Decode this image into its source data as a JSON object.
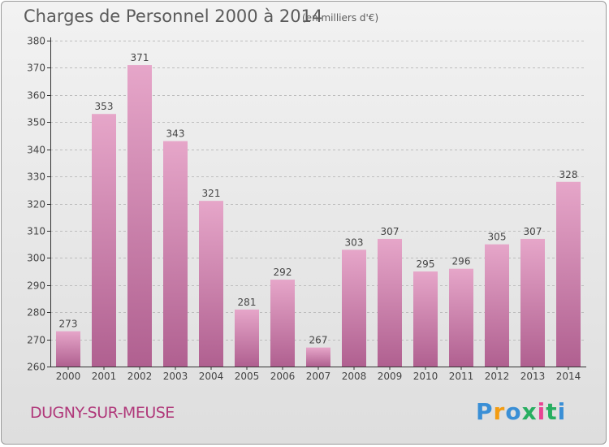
{
  "title": "Charges de Personnel 2000 à 2014",
  "subtitle": "(en milliers d'€)",
  "commune": "DUGNY-SUR-MEUSE",
  "logo": {
    "letters": [
      "P",
      "r",
      "o",
      "x",
      "i",
      "t",
      "i"
    ],
    "colors": [
      "#3a8fd6",
      "#f39c12",
      "#3a8fd6",
      "#27ae60",
      "#e84393",
      "#27ae60",
      "#3a8fd6"
    ]
  },
  "colors": {
    "bar_top": "#e6a6c9",
    "bar_bottom": "#b06090",
    "axis": "#333333",
    "grid": "#bdbdbd"
  },
  "chart_data": {
    "type": "bar",
    "title": "Charges de Personnel 2000 à 2014",
    "ylabel": "",
    "xlabel": "",
    "ylim": [
      260,
      380
    ],
    "yticks": [
      260,
      270,
      280,
      290,
      300,
      310,
      320,
      330,
      340,
      350,
      360,
      370,
      380
    ],
    "grid": true,
    "categories": [
      "2000",
      "2001",
      "2002",
      "2003",
      "2004",
      "2005",
      "2006",
      "2007",
      "2008",
      "2009",
      "2010",
      "2011",
      "2012",
      "2013",
      "2014"
    ],
    "values": [
      273,
      353,
      371,
      343,
      321,
      281,
      292,
      267,
      303,
      307,
      295,
      296,
      305,
      307,
      328
    ]
  }
}
